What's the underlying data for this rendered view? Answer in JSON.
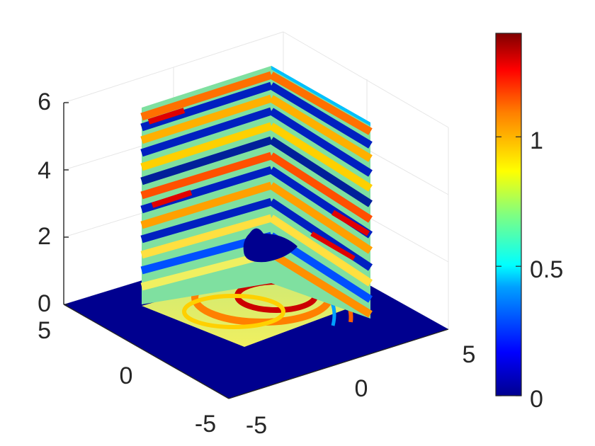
{
  "chart_data": {
    "type": "heatmap",
    "plot_kind": "3d-slice-surface",
    "colormap": "jet",
    "colors": {
      "colormap_low": "#00008f",
      "colormap_high": "#800000",
      "axis_line": "#262626",
      "grid": "#e6e6e6"
    },
    "z_axis": {
      "range": [
        0,
        6
      ],
      "ticks": [
        "0",
        "2",
        "4",
        "6"
      ]
    },
    "x_axis": {
      "range": [
        -5,
        5
      ],
      "ticks": [
        "-5",
        "0",
        "5"
      ]
    },
    "y_axis": {
      "range": [
        -5,
        5
      ],
      "ticks": [
        "5",
        "0",
        "-5"
      ]
    },
    "colorbar": {
      "range": [
        0,
        1.4
      ],
      "ticks": [
        "0",
        "0.5",
        "1"
      ]
    },
    "slices": [
      "left-vertical-plane",
      "right-vertical-plane",
      "horizontal-plane-z0"
    ],
    "scatterer": "dark-blue-obstacle-near-origin",
    "grid": true
  }
}
